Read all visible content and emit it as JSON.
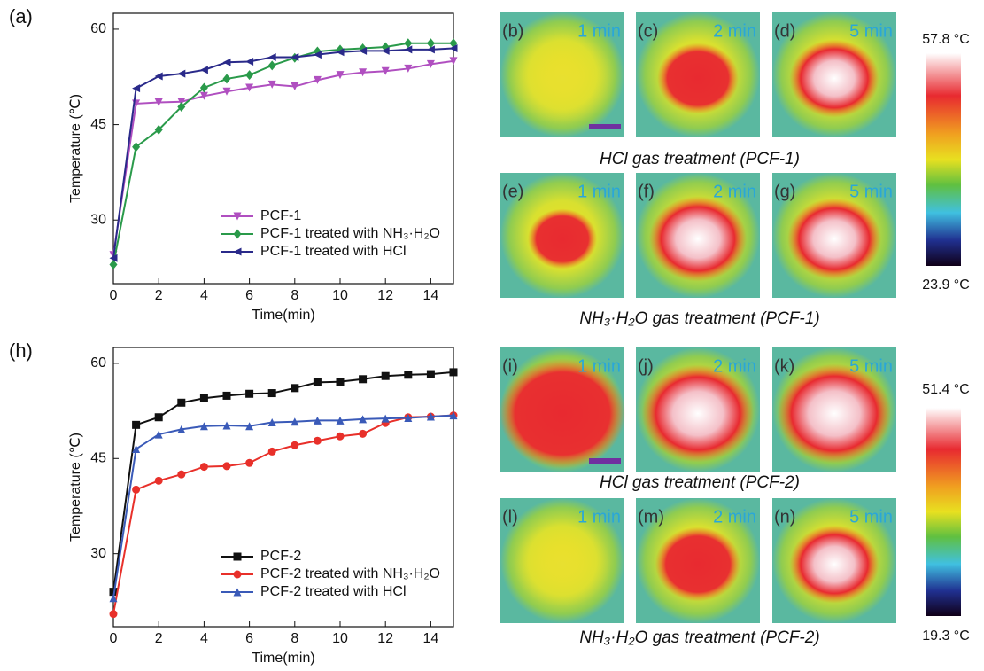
{
  "chart_data": [
    {
      "type": "line",
      "panel": "(a)",
      "x_label": "Time(min)",
      "y_label": "Temperature (℃)",
      "x": [
        0,
        1,
        2,
        3,
        4,
        5,
        6,
        7,
        8,
        9,
        10,
        11,
        12,
        13,
        14,
        15
      ],
      "xlim": [
        0,
        15
      ],
      "xticks": [
        0,
        2,
        4,
        6,
        8,
        10,
        12,
        14
      ],
      "ylim": [
        20,
        62.5
      ],
      "yticks": [
        30,
        45,
        60
      ],
      "legend": "lower center",
      "series": [
        {
          "name": "PCF-1",
          "color": "#b04fc0",
          "marker": "triangle-down",
          "values": [
            24.5,
            48.3,
            48.5,
            48.6,
            49.5,
            50.2,
            50.8,
            51.3,
            51.0,
            52.0,
            52.8,
            53.2,
            53.4,
            53.8,
            54.5,
            55.0
          ]
        },
        {
          "name": "PCF-1 treated with NH₃·H₂O",
          "color": "#2a9a4a",
          "marker": "diamond",
          "values": [
            23.0,
            41.5,
            44.2,
            47.8,
            50.8,
            52.2,
            52.8,
            54.3,
            55.5,
            56.5,
            56.8,
            57.0,
            57.2,
            57.8,
            57.8,
            57.8
          ]
        },
        {
          "name": "PCF-1 treated with HCl",
          "color": "#2a2a8a",
          "marker": "triangle-left",
          "values": [
            24.0,
            50.7,
            52.6,
            53.0,
            53.6,
            54.8,
            54.9,
            55.6,
            55.6,
            56.0,
            56.4,
            56.6,
            56.6,
            56.8,
            56.8,
            57.0
          ]
        }
      ]
    },
    {
      "type": "line",
      "panel": "(h)",
      "x_label": "Time(min)",
      "y_label": "Temperature (℃)",
      "x": [
        0,
        1,
        2,
        3,
        4,
        5,
        6,
        7,
        8,
        9,
        10,
        11,
        12,
        13,
        14,
        15
      ],
      "xlim": [
        0,
        15
      ],
      "xticks": [
        0,
        2,
        4,
        6,
        8,
        10,
        12,
        14
      ],
      "ylim": [
        18.5,
        62.5
      ],
      "yticks": [
        30,
        45,
        60
      ],
      "legend": "lower center",
      "series": [
        {
          "name": "PCF-2",
          "color": "#111111",
          "marker": "square",
          "values": [
            24.0,
            50.3,
            51.5,
            53.8,
            54.5,
            54.9,
            55.2,
            55.3,
            56.1,
            57.0,
            57.1,
            57.5,
            58.0,
            58.2,
            58.3,
            58.6
          ]
        },
        {
          "name": "PCF-2 treated with NH₃·H₂O",
          "color": "#e8302a",
          "marker": "circle",
          "values": [
            20.5,
            40.1,
            41.5,
            42.5,
            43.7,
            43.8,
            44.3,
            46.1,
            47.1,
            47.8,
            48.5,
            48.9,
            50.6,
            51.5,
            51.6,
            51.8
          ]
        },
        {
          "name": "PCF-2 treated with HCl",
          "color": "#3a5ab8",
          "marker": "triangle-up",
          "values": [
            23.0,
            46.5,
            48.8,
            49.6,
            50.1,
            50.2,
            50.1,
            50.7,
            50.8,
            51.0,
            51.0,
            51.2,
            51.3,
            51.4,
            51.6,
            51.8
          ]
        }
      ]
    }
  ],
  "images": [
    {
      "label": "(b)",
      "time": "1 min"
    },
    {
      "label": "(c)",
      "time": "2 min"
    },
    {
      "label": "(d)",
      "time": "5 min"
    },
    {
      "label": "(e)",
      "time": "1 min"
    },
    {
      "label": "(f)",
      "time": "2 min"
    },
    {
      "label": "(g)",
      "time": "5 min"
    },
    {
      "label": "(i)",
      "time": "1 min"
    },
    {
      "label": "(j)",
      "time": "2 min"
    },
    {
      "label": "(k)",
      "time": "5 min"
    },
    {
      "label": "(l)",
      "time": "1 min"
    },
    {
      "label": "(m)",
      "time": "2 min"
    },
    {
      "label": "(n)",
      "time": "5 min"
    }
  ],
  "captions": [
    "HCl gas treatment (PCF-1)",
    "NH₃·H₂O gas treatment (PCF-1)",
    "HCl gas treatment (PCF-2)",
    "NH₃·H₂O gas treatment (PCF-2)"
  ],
  "colorbars": [
    {
      "max": "57.8 °C",
      "min": "23.9 °C"
    },
    {
      "max": "51.4 °C",
      "min": "19.3 °C"
    }
  ]
}
